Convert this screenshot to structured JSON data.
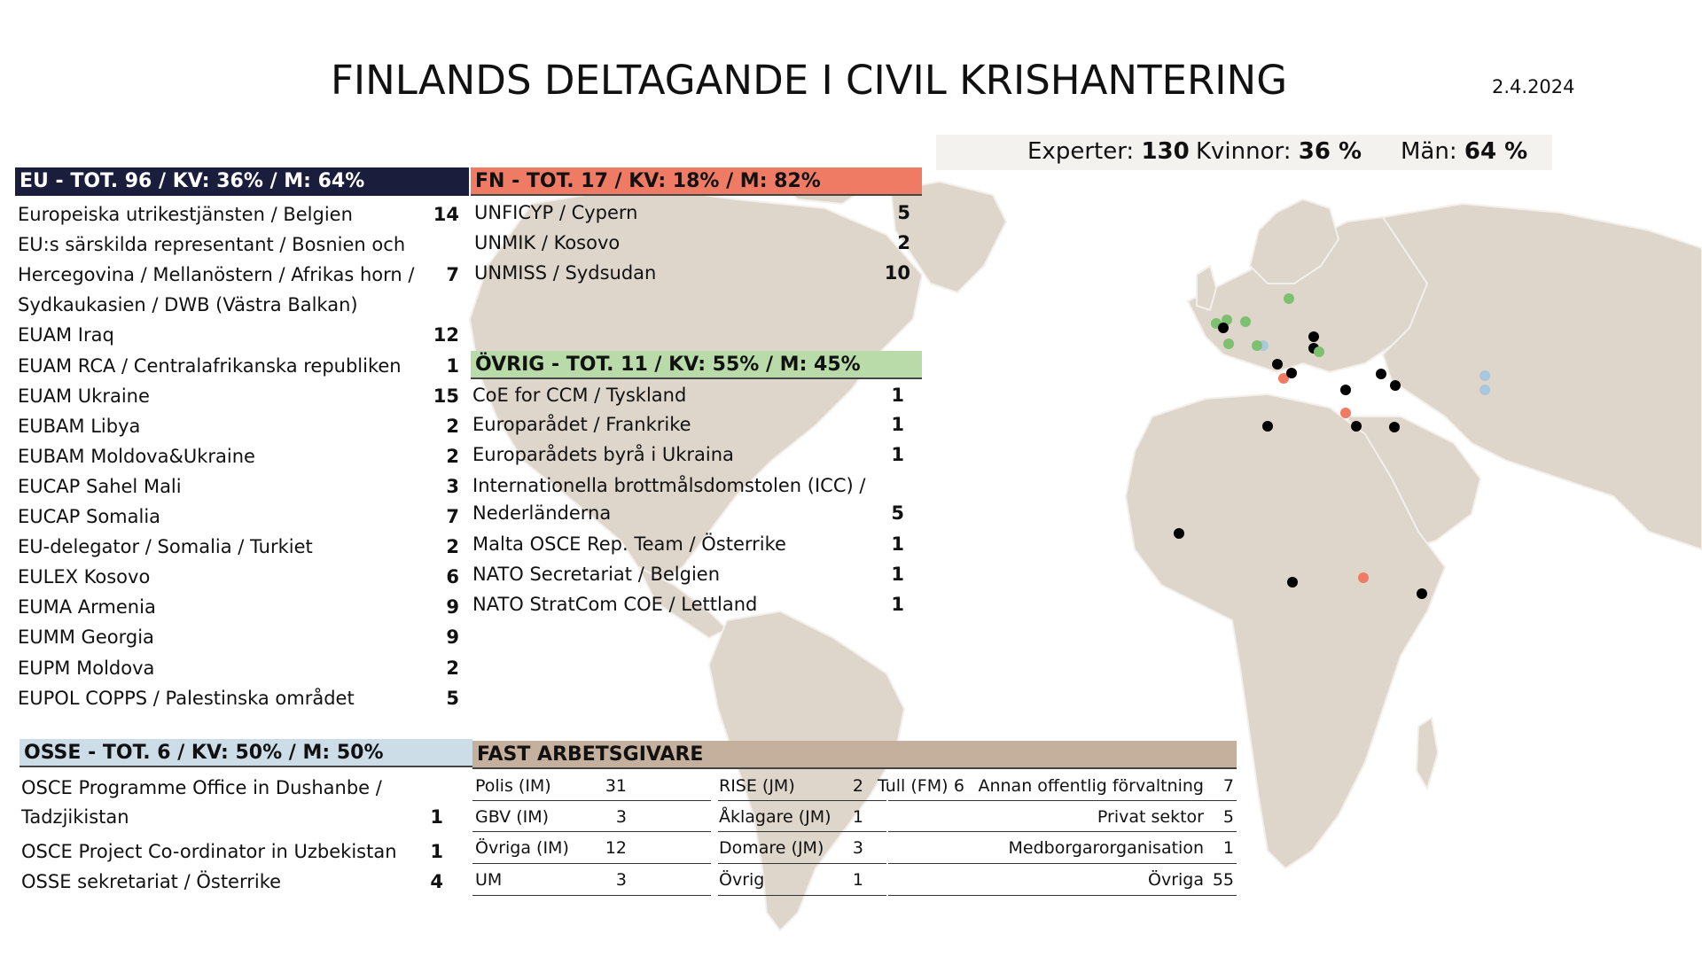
{
  "title": "FINLANDS DELTAGANDE I CIVIL KRISHANTERING",
  "date": "2.4.2024",
  "stats": {
    "experter_label": "Experter:",
    "experter_value": "130",
    "kvinnor_label": "Kvinnor:",
    "kvinnor_value": "36 %",
    "man_label": "Män:",
    "man_value": "64 %"
  },
  "eu": {
    "header": "EU - TOT. 96 / KV: 36% / M: 64%",
    "items": [
      {
        "label": "Europeiska utrikestjänsten / Belgien",
        "value": "14"
      },
      {
        "label": "EU:s särskilda representant / Bosnien och",
        "value": ""
      },
      {
        "label": "Hercegovina / Mellanöstern / Afrikas horn /",
        "value": "7"
      },
      {
        "label": "Sydkaukasien / DWB (Västra Balkan)",
        "value": ""
      },
      {
        "label": "EUAM Iraq",
        "value": "12"
      },
      {
        "label": "EUAM RCA / Centralafrikanska republiken",
        "value": "1"
      },
      {
        "label": "EUAM Ukraine",
        "value": "15"
      },
      {
        "label": "EUBAM Libya",
        "value": "2"
      },
      {
        "label": "EUBAM Moldova&Ukraine",
        "value": "2"
      },
      {
        "label": "EUCAP Sahel Mali",
        "value": "3"
      },
      {
        "label": "EUCAP Somalia",
        "value": "7"
      },
      {
        "label": "EU-delegator / Somalia / Turkiet",
        "value": "2"
      },
      {
        "label": "EULEX Kosovo",
        "value": "6"
      },
      {
        "label": "EUMA Armenia",
        "value": "9"
      },
      {
        "label": "EUMM Georgia",
        "value": "9"
      },
      {
        "label": "EUPM Moldova",
        "value": "2"
      },
      {
        "label": "EUPOL COPPS / Palestinska området",
        "value": "5"
      }
    ]
  },
  "fn": {
    "header": "FN - TOT. 17 / KV: 18% / M: 82%",
    "items": [
      {
        "label": "UNFICYP / Cypern",
        "value": "5"
      },
      {
        "label": "UNMIK / Kosovo",
        "value": "2"
      },
      {
        "label": "UNMISS / Sydsudan",
        "value": "10"
      }
    ]
  },
  "ovrig": {
    "header": "ÖVRIG - TOT. 11 / KV: 55% / M: 45%",
    "items": [
      {
        "label": "CoE for CCM / Tyskland",
        "value": "1"
      },
      {
        "label": "Europarådet / Frankrike",
        "value": "1"
      },
      {
        "label": "Europarådets byrå i Ukraina",
        "value": "1"
      },
      {
        "label": "Internationella brottmålsdomstolen (ICC) /",
        "value": ""
      },
      {
        "label": "Nederländerna",
        "value": "5"
      },
      {
        "label": "Malta OSCE Rep. Team / Österrike",
        "value": "1"
      },
      {
        "label": "NATO Secretariat / Belgien",
        "value": "1"
      },
      {
        "label": "NATO StratCom COE / Lettland",
        "value": "1"
      }
    ]
  },
  "osse": {
    "header": "OSSE - TOT. 6 / KV: 50% / M: 50%",
    "items": [
      {
        "label": "OSCE Programme Office in Dushanbe /",
        "value": ""
      },
      {
        "label": "Tadzjikistan",
        "value": "1"
      },
      {
        "label": "OSCE Project Co-ordinator in Uzbekistan",
        "value": "1"
      },
      {
        "label": "OSSE sekretariat / Österrike",
        "value": "4"
      }
    ]
  },
  "fast": {
    "header": "FAST ARBETSGIVARE",
    "col1": [
      {
        "label": "Polis (IM)",
        "value": "31"
      },
      {
        "label": "GBV (IM)",
        "value": "3"
      },
      {
        "label": "Övriga (IM)",
        "value": "12"
      },
      {
        "label": "UM",
        "value": "3"
      }
    ],
    "col2": [
      {
        "label": "RISE (JM)",
        "value": "2"
      },
      {
        "label": "Åklagare (JM)",
        "value": "1"
      },
      {
        "label": "Domare (JM)",
        "value": "3"
      },
      {
        "label": "Övrig",
        "value": "1"
      }
    ],
    "col3": [
      {
        "label": "Tull (FM)",
        "value": "6"
      }
    ],
    "col4": [
      {
        "label": "Annan offentlig förvaltning",
        "value": "7"
      },
      {
        "label": "Privat sektor",
        "value": "5"
      },
      {
        "label": "Medborgarorganisation",
        "value": "1"
      },
      {
        "label": "Övriga",
        "value": "55"
      }
    ]
  },
  "colors": {
    "eu": "#1b1d3c",
    "fn": "#f07b64",
    "ovrig": "#b8dba9",
    "osse": "#cddde7",
    "fast": "#c4b09d",
    "land": "#ded5cb",
    "marker_eu": "#000000",
    "marker_fn": "#f07b64",
    "marker_ovrig": "#7dc170",
    "marker_osse": "#a9c8dc"
  }
}
